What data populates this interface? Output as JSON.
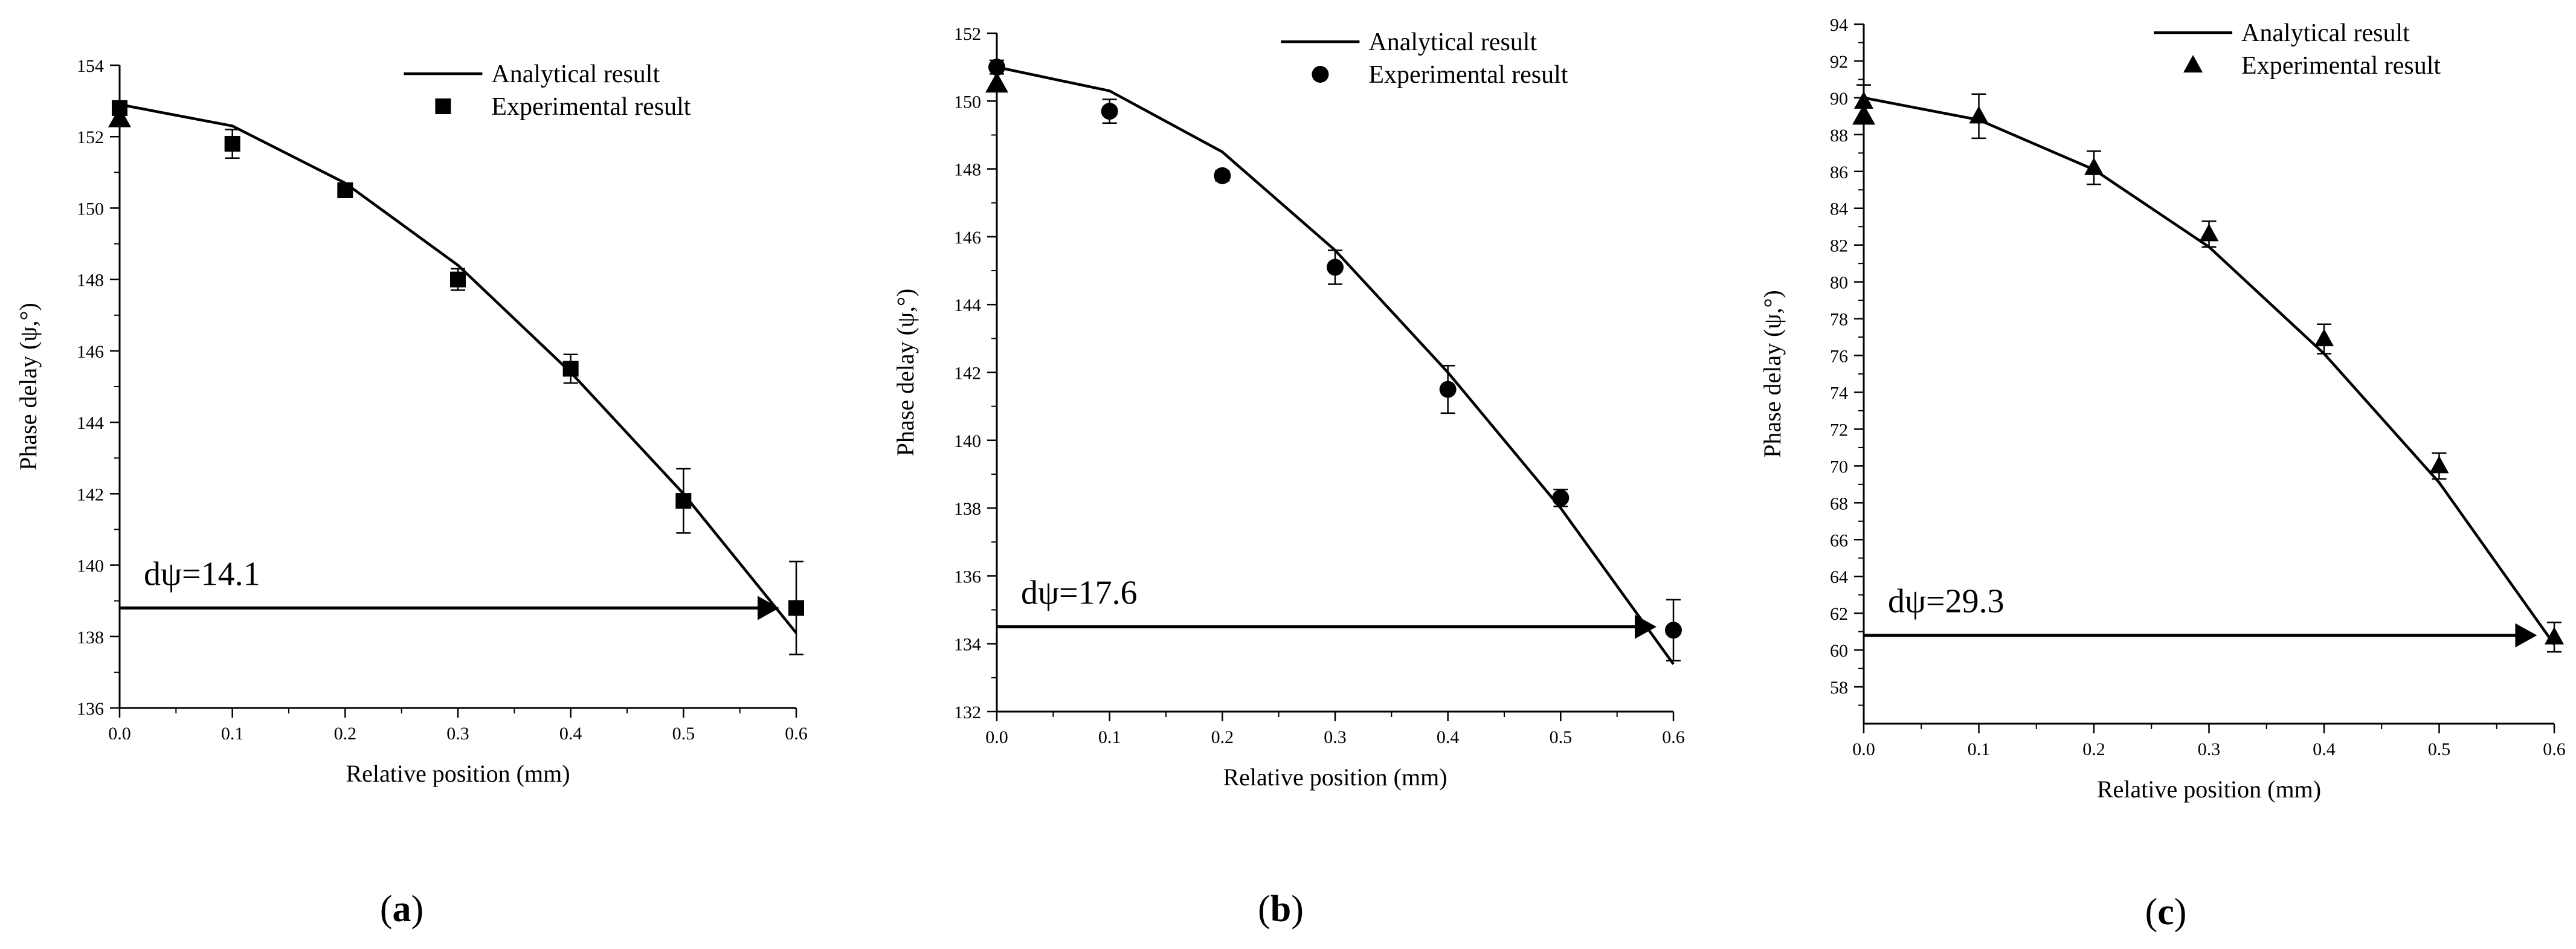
{
  "figure": {
    "panel_labels": [
      "(a)",
      "(b)",
      "(c)"
    ]
  },
  "chart_data": [
    {
      "type": "line",
      "xlabel": "Relative position (mm)",
      "ylabel": "Phase delay (ψ,°)",
      "xlim": [
        0.0,
        0.6
      ],
      "ylim": [
        136,
        154
      ],
      "x_ticks": [
        "0.0",
        "0.1",
        "0.2",
        "0.3",
        "0.4",
        "0.5",
        "0.6"
      ],
      "y_ticks": [
        "136",
        "138",
        "140",
        "142",
        "144",
        "146",
        "148",
        "150",
        "152",
        "154"
      ],
      "legend": {
        "position": "top-right",
        "entries": [
          "Analytical result",
          "Experimental result"
        ]
      },
      "annotation": "dψ=14.1",
      "reference_level": 138.8,
      "series": [
        {
          "name": "Analytical result",
          "x": [
            0.0,
            0.1,
            0.2,
            0.3,
            0.4,
            0.5,
            0.6
          ],
          "y": [
            152.9,
            152.3,
            150.7,
            148.4,
            145.4,
            142.0,
            138.1
          ]
        },
        {
          "name": "Experimental result",
          "marker": "square",
          "x": [
            0.0,
            0.1,
            0.2,
            0.3,
            0.4,
            0.5,
            0.6
          ],
          "y": [
            152.8,
            151.8,
            150.5,
            148.0,
            145.5,
            141.8,
            138.8
          ],
          "err": [
            0.2,
            0.4,
            0.2,
            0.3,
            0.4,
            0.9,
            1.3
          ]
        }
      ],
      "start_marker": {
        "x": 0.0,
        "y": 152.5
      }
    },
    {
      "type": "line",
      "xlabel": "Relative position (mm)",
      "ylabel": "Phase delay (ψ,°)",
      "xlim": [
        0.0,
        0.6
      ],
      "ylim": [
        132,
        152
      ],
      "x_ticks": [
        "0.0",
        "0.1",
        "0.2",
        "0.3",
        "0.4",
        "0.5",
        "0.6"
      ],
      "y_ticks": [
        "132",
        "134",
        "136",
        "138",
        "140",
        "142",
        "144",
        "146",
        "148",
        "150",
        "152"
      ],
      "legend": {
        "position": "top-right",
        "entries": [
          "Analytical result",
          "Experimental result"
        ]
      },
      "annotation": "dψ=17.6",
      "reference_level": 134.5,
      "series": [
        {
          "name": "Analytical result",
          "x": [
            0.0,
            0.1,
            0.2,
            0.3,
            0.4,
            0.5,
            0.6
          ],
          "y": [
            151.0,
            150.3,
            148.5,
            145.6,
            142.0,
            138.0,
            133.4
          ]
        },
        {
          "name": "Experimental result",
          "marker": "circle",
          "x": [
            0.0,
            0.1,
            0.2,
            0.3,
            0.4,
            0.5,
            0.6
          ],
          "y": [
            151.0,
            149.7,
            147.8,
            145.1,
            141.5,
            138.3,
            134.4
          ],
          "err": [
            0.2,
            0.35,
            0.15,
            0.5,
            0.7,
            0.25,
            0.9
          ]
        }
      ],
      "start_marker": {
        "x": 0.0,
        "y": 150.5
      }
    },
    {
      "type": "line",
      "xlabel": "Relative position (mm)",
      "ylabel": "Phase delay (ψ,°)",
      "xlim": [
        0.0,
        0.6
      ],
      "ylim": [
        56,
        94
      ],
      "x_ticks": [
        "0.0",
        "0.1",
        "0.2",
        "0.3",
        "0.4",
        "0.5",
        "0.6"
      ],
      "y_ticks": [
        "58",
        "60",
        "62",
        "64",
        "66",
        "68",
        "70",
        "72",
        "74",
        "76",
        "78",
        "80",
        "82",
        "84",
        "86",
        "88",
        "90",
        "92",
        "94"
      ],
      "legend": {
        "position": "top-right",
        "entries": [
          "Analytical result",
          "Experimental result"
        ]
      },
      "annotation": "dψ=29.3",
      "reference_level": 60.8,
      "series": [
        {
          "name": "Analytical result",
          "x": [
            0.0,
            0.1,
            0.2,
            0.3,
            0.4,
            0.5,
            0.6
          ],
          "y": [
            90.0,
            88.8,
            86.1,
            81.9,
            76.1,
            69.1,
            60.3
          ]
        },
        {
          "name": "Experimental result",
          "marker": "triangle",
          "x": [
            0.0,
            0.1,
            0.2,
            0.3,
            0.4,
            0.5,
            0.6
          ],
          "y": [
            89.8,
            89.0,
            86.2,
            82.6,
            76.9,
            70.0,
            60.7
          ],
          "err": [
            0.9,
            1.2,
            0.9,
            0.7,
            0.8,
            0.7,
            0.8
          ]
        }
      ],
      "start_marker": {
        "x": 0.0,
        "y": 89.0
      }
    }
  ]
}
